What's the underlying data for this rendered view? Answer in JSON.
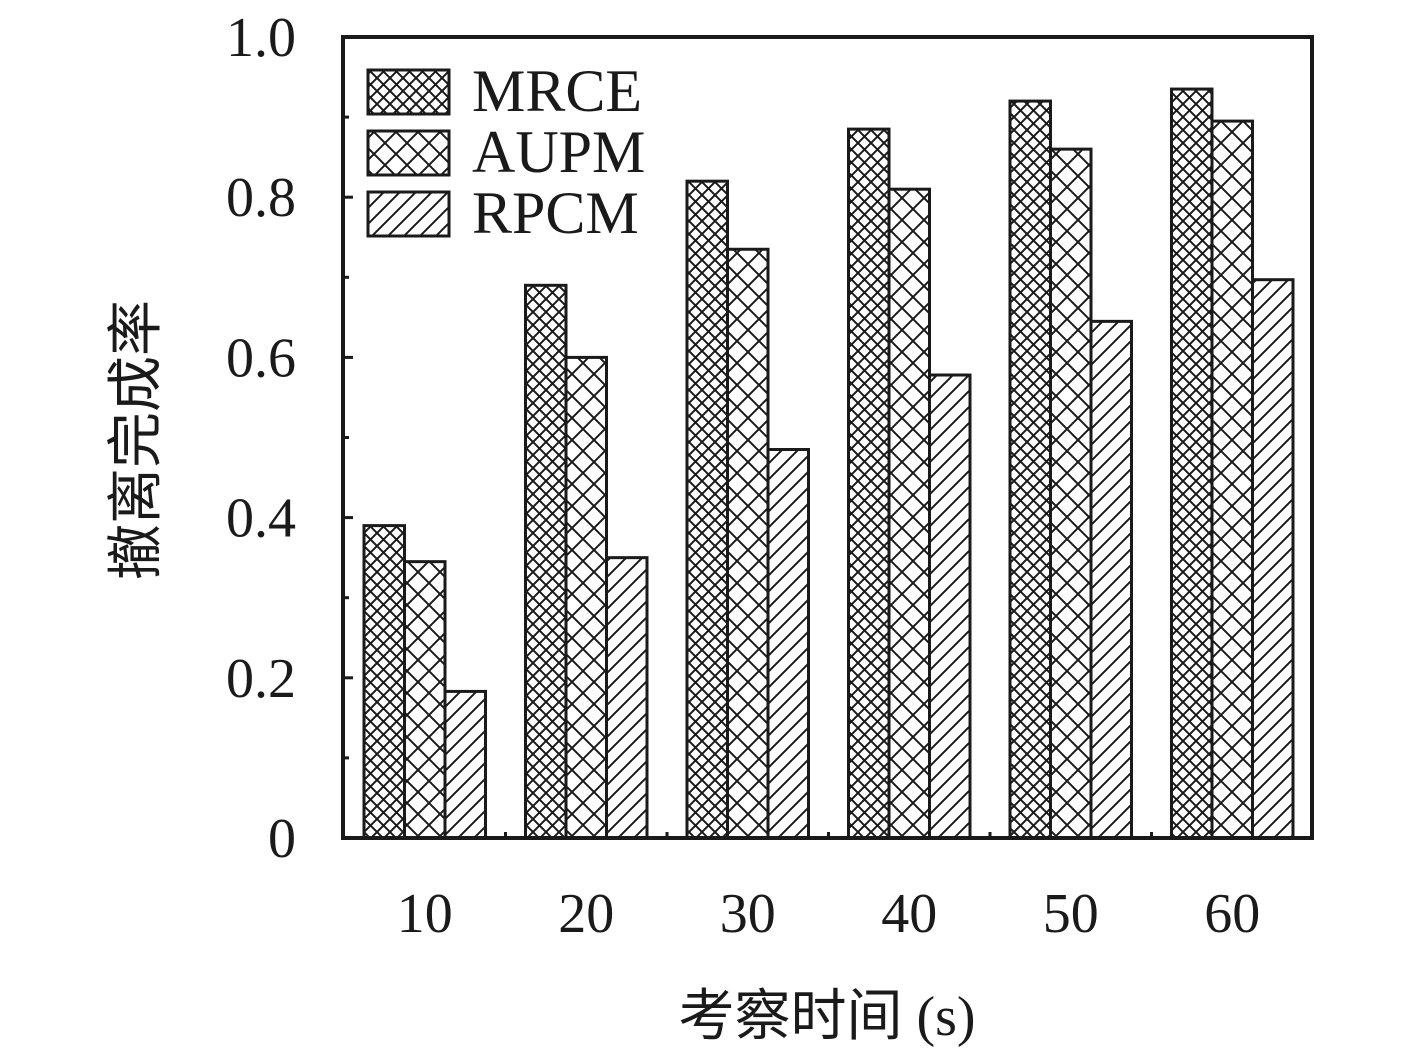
{
  "chart_data": {
    "type": "bar",
    "title": "",
    "xlabel": "考察时间 (s)",
    "ylabel": "撤离完成率",
    "categories": [
      "10",
      "20",
      "30",
      "40",
      "50",
      "60"
    ],
    "ylim": [
      0,
      1.0
    ],
    "yticks": [
      "0",
      "0.2",
      "0.4",
      "0.6",
      "0.8",
      "1.0"
    ],
    "legend_position": "top-left",
    "grid": false,
    "series": [
      {
        "name": "MRCE",
        "pattern": "dense-crosshatch",
        "values": [
          0.39,
          0.69,
          0.82,
          0.885,
          0.92,
          0.935
        ]
      },
      {
        "name": "AUPM",
        "pattern": "crosshatch",
        "values": [
          0.345,
          0.6,
          0.735,
          0.81,
          0.86,
          0.895
        ]
      },
      {
        "name": "RPCM",
        "pattern": "diagonal",
        "values": [
          0.183,
          0.35,
          0.485,
          0.578,
          0.645,
          0.697
        ]
      }
    ],
    "colors": {
      "stroke": "#1a1a1a",
      "fill": "#ffffff"
    }
  }
}
